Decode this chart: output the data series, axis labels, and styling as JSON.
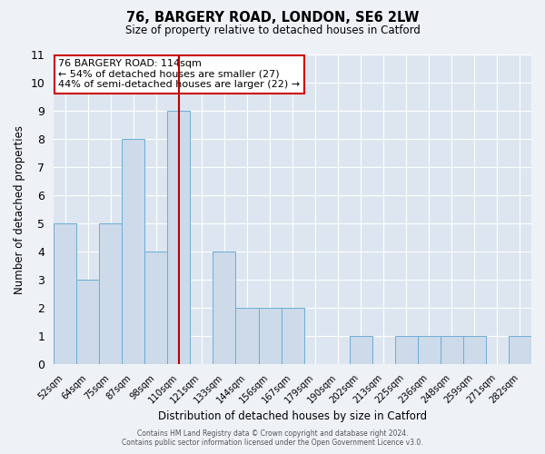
{
  "title": "76, BARGERY ROAD, LONDON, SE6 2LW",
  "subtitle": "Size of property relative to detached houses in Catford",
  "xlabel": "Distribution of detached houses by size in Catford",
  "ylabel": "Number of detached properties",
  "bin_labels": [
    "52sqm",
    "64sqm",
    "75sqm",
    "87sqm",
    "98sqm",
    "110sqm",
    "121sqm",
    "133sqm",
    "144sqm",
    "156sqm",
    "167sqm",
    "179sqm",
    "190sqm",
    "202sqm",
    "213sqm",
    "225sqm",
    "236sqm",
    "248sqm",
    "259sqm",
    "271sqm",
    "282sqm"
  ],
  "bar_heights": [
    5,
    3,
    5,
    8,
    4,
    9,
    0,
    4,
    2,
    2,
    2,
    0,
    0,
    1,
    0,
    1,
    1,
    1,
    1,
    0,
    1
  ],
  "bar_color": "#ccdaea",
  "bar_edge_color": "#6aaed6",
  "reference_line_bin": 5,
  "reference_line_color": "#bb0000",
  "ylim": [
    0,
    11
  ],
  "yticks": [
    0,
    1,
    2,
    3,
    4,
    5,
    6,
    7,
    8,
    9,
    10,
    11
  ],
  "annotation_title": "76 BARGERY ROAD: 114sqm",
  "annotation_line1": "← 54% of detached houses are smaller (27)",
  "annotation_line2": "44% of semi-detached houses are larger (22) →",
  "annotation_box_color": "#ffffff",
  "annotation_box_edgecolor": "#cc0000",
  "bg_color": "#eef2f7",
  "plot_bg_color": "#dde6f0",
  "grid_color": "#ffffff",
  "footer1": "Contains HM Land Registry data © Crown copyright and database right 2024.",
  "footer2": "Contains public sector information licensed under the Open Government Licence v3.0."
}
